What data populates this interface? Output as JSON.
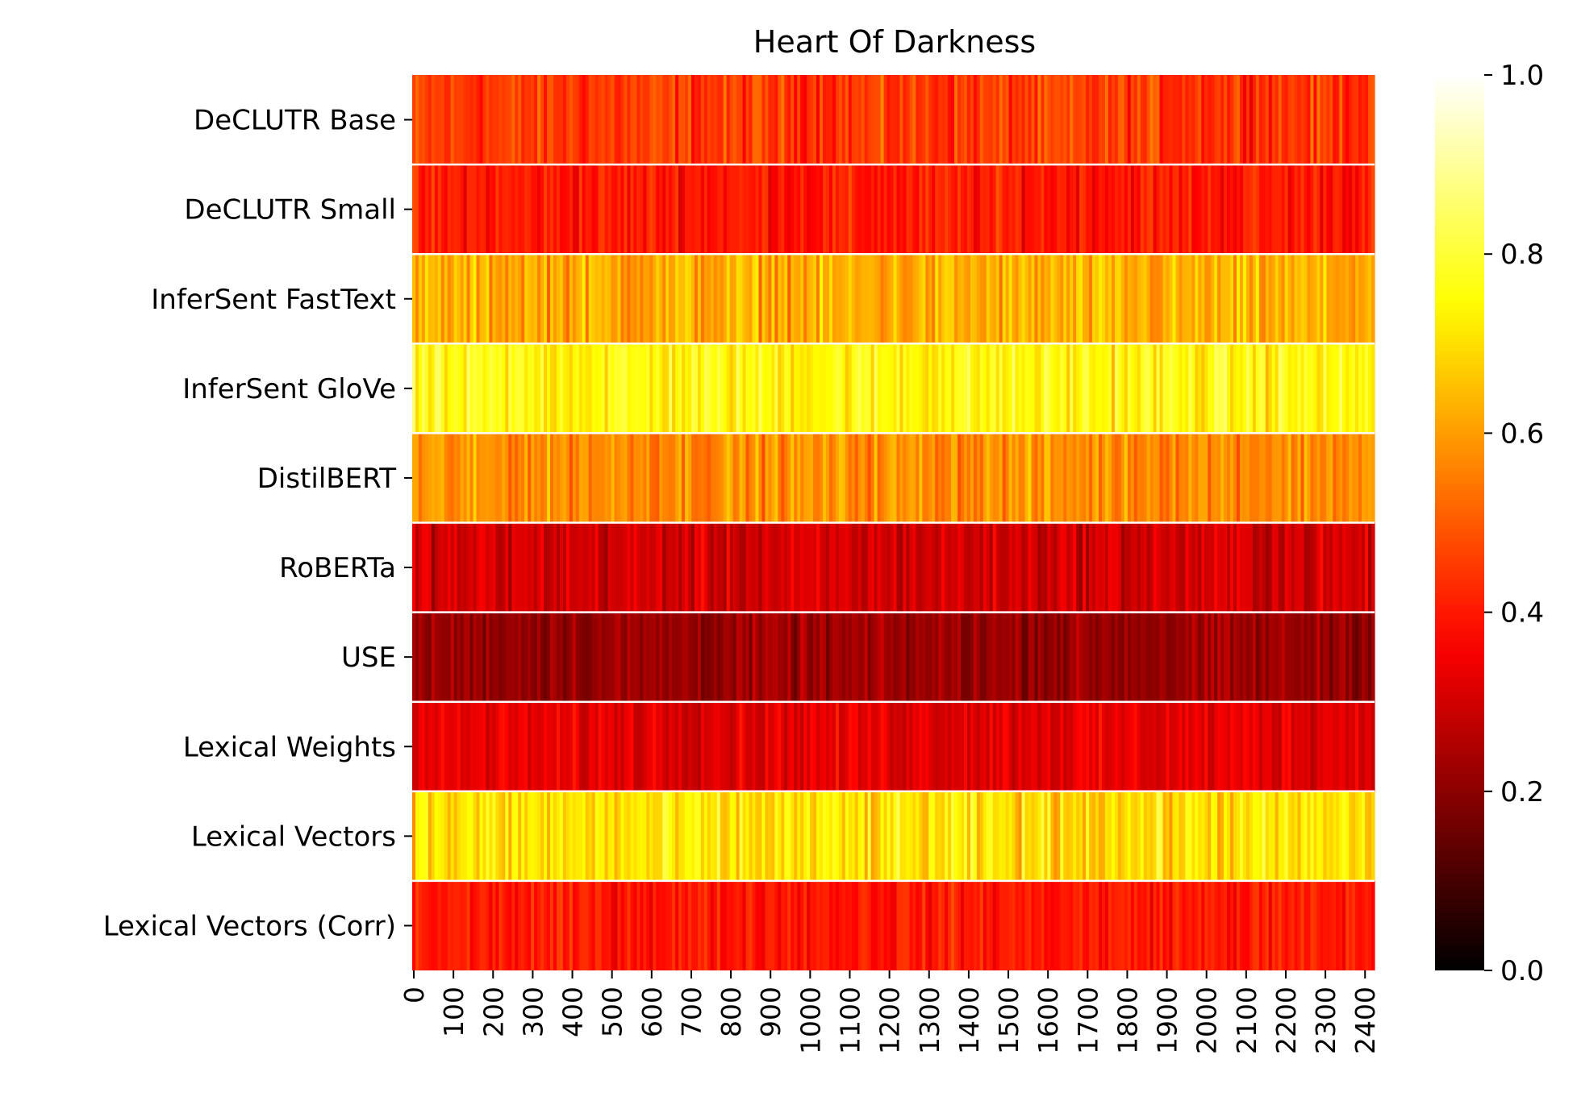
{
  "chart_data": {
    "type": "heatmap",
    "title": "Heart Of Darkness",
    "xlabel": "",
    "ylabel": "",
    "rows": [
      "DeCLUTR Base",
      "DeCLUTR Small",
      "InferSent FastText",
      "InferSent GloVe",
      "DistilBERT",
      "RoBERTa",
      "USE",
      "Lexical Weights",
      "Lexical Vectors",
      "Lexical Vectors (Corr)"
    ],
    "row_mean_values": [
      0.45,
      0.4,
      0.62,
      0.75,
      0.58,
      0.3,
      0.22,
      0.33,
      0.7,
      0.4
    ],
    "row_spread": [
      0.08,
      0.07,
      0.09,
      0.09,
      0.08,
      0.07,
      0.06,
      0.06,
      0.1,
      0.06
    ],
    "x_range": [
      0,
      2428
    ],
    "x_ticks": [
      0,
      100,
      200,
      300,
      400,
      500,
      600,
      700,
      800,
      900,
      1000,
      1100,
      1200,
      1300,
      1400,
      1500,
      1600,
      1700,
      1800,
      1900,
      2000,
      2100,
      2200,
      2300,
      2400
    ],
    "colorbar": {
      "colormap": "hot",
      "range": [
        0.0,
        1.0
      ],
      "ticks": [
        "0.0",
        "0.2",
        "0.4",
        "0.6",
        "0.8",
        "1.0"
      ]
    },
    "row_separator_color": "#ffffff",
    "grid": false,
    "legend": "colorbar-right"
  }
}
